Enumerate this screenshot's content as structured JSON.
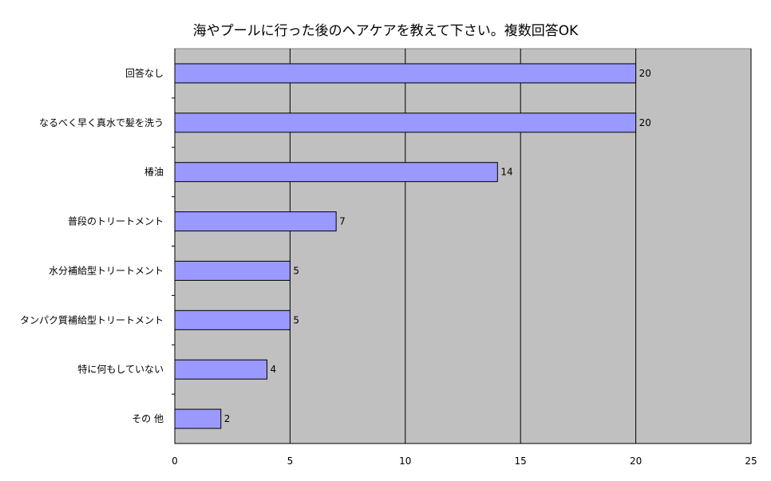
{
  "chart_data": {
    "type": "bar",
    "orientation": "horizontal",
    "title": "海やプールに行った後のヘアケアを教えて下さい。複数回答OK",
    "categories": [
      "回答なし",
      "なるべく早く真水で髪を洗う",
      "椿油",
      "普段のトリートメント",
      "水分補給型トリートメント",
      "タンパク質補給型トリートメント",
      "特に何もしていない",
      "その 他"
    ],
    "values": [
      20,
      20,
      14,
      7,
      5,
      5,
      4,
      2
    ],
    "xlim": [
      0,
      25
    ],
    "xticks": [
      0,
      5,
      10,
      15,
      20,
      25
    ],
    "grid": true,
    "colors": {
      "bar": "#9999FF",
      "bar_border": "#000000",
      "plot_background": "#C0C0C0",
      "gridline": "#000000"
    }
  }
}
